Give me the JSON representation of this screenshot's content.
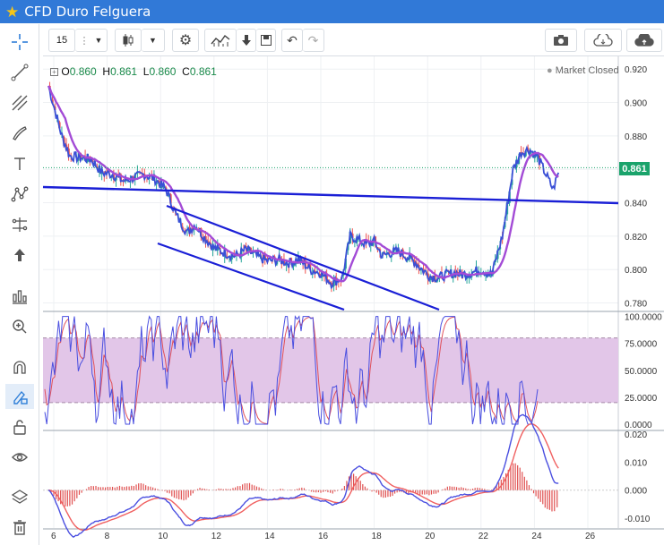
{
  "window": {
    "title": "CFD Duro Felguera"
  },
  "toolbar": {
    "interval": "15"
  },
  "legend": {
    "o_label": "O",
    "o_value": "0.860",
    "h_label": "H",
    "h_value": "0.861",
    "l_label": "L",
    "l_value": "0.860",
    "c_label": "C",
    "c_value": "0.861"
  },
  "status": {
    "market": "Market Closed"
  },
  "price": {
    "current": "0.861",
    "current_value": 0.861
  },
  "price_axis": {
    "labels": [
      "0.920",
      "0.900",
      "0.880",
      "0.860",
      "0.840",
      "0.820",
      "0.800",
      "0.780"
    ],
    "range": [
      0.776,
      0.926
    ]
  },
  "stoch_axis": {
    "labels": [
      "100.0000",
      "75.0000",
      "50.0000",
      "25.0000",
      "0.0000"
    ],
    "range": [
      -5,
      103
    ],
    "band": [
      20,
      80
    ]
  },
  "macd_axis": {
    "labels": [
      "0.020",
      "0.010",
      "0.000",
      "-0.010"
    ],
    "range": [
      -0.0135,
      0.021
    ]
  },
  "time_axis": {
    "labels": [
      "6",
      "8",
      "10",
      "12",
      "14",
      "16",
      "18",
      "20",
      "22",
      "24",
      "26"
    ]
  },
  "colors": {
    "titlebar": "#3179d7",
    "candle_up": "#26a69a",
    "candle_down": "#ef5350",
    "ma_line": "#a34bd6",
    "price_line": "#3a4fd6",
    "trendline": "#1a1fd6",
    "stoch_k": "#4a4fe0",
    "stoch_d": "#e0505a",
    "stoch_band": "#e2c6e8",
    "macd_line": "#4a4fe0",
    "signal_line": "#f06060",
    "price_tag": "#1aa36b"
  },
  "icons": {
    "sidebar": [
      "crosshair-icon",
      "trendline-icon",
      "pitchfork-icon",
      "brush-icon",
      "text-icon",
      "pattern-icon",
      "measure-icon",
      "arrow-up-icon",
      "indicator-icon",
      "zoom-icon",
      "magnet-icon",
      "lock-drawing-icon",
      "unlock-icon",
      "eye-icon",
      "layers-icon",
      "trash-icon"
    ],
    "toolbar": [
      "candles-icon",
      "chevron-down-icon",
      "settings-icon",
      "indicators-icon",
      "compare-icon",
      "save-icon",
      "undo-icon",
      "redo-icon",
      "camera-icon",
      "cloud-download-icon",
      "cloud-upload-icon"
    ]
  },
  "chart_data": {
    "type": "candlestick",
    "price_series": {
      "x_day": [
        5.8,
        6.0,
        6.3,
        6.6,
        7.0,
        7.4,
        7.8,
        8.2,
        8.6,
        9.0,
        9.4,
        9.8,
        10.2,
        10.6,
        11.0,
        11.3,
        11.6,
        12.0,
        12.4,
        12.8,
        13.2,
        13.6,
        14.0,
        14.4,
        14.8,
        15.2,
        15.6,
        16.0,
        16.4,
        16.8,
        17.1,
        17.4,
        17.7,
        18.0,
        18.3,
        18.6,
        18.9,
        19.2,
        19.5,
        19.8,
        20.1,
        20.4,
        20.7,
        21.0,
        21.3,
        21.6,
        22.0,
        22.4,
        22.8,
        23.2,
        23.5,
        23.8,
        24.1,
        24.4,
        24.7,
        24.9
      ],
      "close": [
        0.91,
        0.898,
        0.88,
        0.868,
        0.867,
        0.866,
        0.858,
        0.857,
        0.853,
        0.855,
        0.857,
        0.854,
        0.848,
        0.832,
        0.822,
        0.827,
        0.82,
        0.813,
        0.81,
        0.808,
        0.812,
        0.808,
        0.805,
        0.806,
        0.804,
        0.806,
        0.8,
        0.798,
        0.792,
        0.795,
        0.82,
        0.818,
        0.815,
        0.817,
        0.808,
        0.81,
        0.811,
        0.808,
        0.805,
        0.8,
        0.796,
        0.795,
        0.797,
        0.798,
        0.797,
        0.798,
        0.8,
        0.797,
        0.82,
        0.86,
        0.87,
        0.872,
        0.868,
        0.858,
        0.848,
        0.858
      ]
    },
    "stochastic": {
      "upper": 80,
      "lower": 20
    }
  }
}
